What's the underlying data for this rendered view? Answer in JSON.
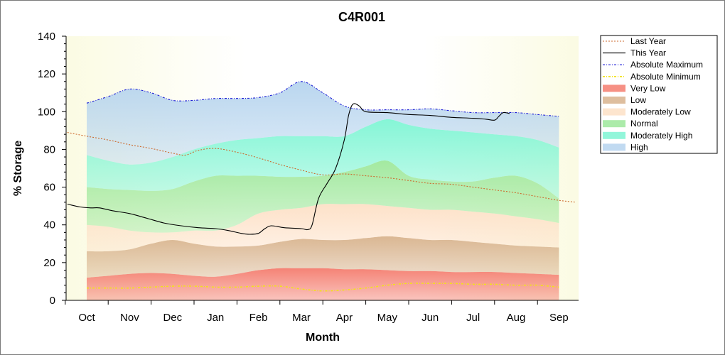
{
  "chart_data": {
    "type": "area",
    "title": "C4R001",
    "xlabel": "Month",
    "ylabel": "% Storage",
    "ylim": [
      0,
      140
    ],
    "y_ticks": [
      0,
      20,
      40,
      60,
      80,
      100,
      120,
      140
    ],
    "x_categories": [
      "Oct",
      "Nov",
      "Dec",
      "Jan",
      "Feb",
      "Mar",
      "Apr",
      "May",
      "Jun",
      "Jul",
      "Aug",
      "Sep"
    ],
    "legend_position": "right",
    "bands_x": [
      0,
      0.5,
      1,
      1.5,
      2,
      2.5,
      3,
      3.5,
      4,
      4.5,
      5,
      5.5,
      6,
      6.5,
      7,
      7.5,
      8,
      8.5,
      9,
      9.5,
      10,
      10.5,
      11
    ],
    "bands": [
      {
        "name": "Very Low",
        "color": "#f47c6e",
        "upper": [
          12,
          13,
          14,
          14.5,
          14,
          13,
          12.5,
          14,
          16,
          17,
          17,
          17,
          16.5,
          16.5,
          16,
          15.5,
          15.5,
          15,
          15,
          15,
          14.5,
          14,
          13.5
        ]
      },
      {
        "name": "Low",
        "color": "#d8b38d",
        "upper": [
          26,
          26,
          27,
          30,
          32,
          30,
          28.5,
          28.5,
          29,
          31,
          32.5,
          32,
          32,
          33,
          34,
          33,
          32,
          32,
          31,
          30,
          29,
          28.5,
          28
        ]
      },
      {
        "name": "Moderately Low",
        "color": "#fde0c6",
        "upper": [
          40,
          39,
          37,
          36,
          36,
          37,
          37,
          40,
          46,
          48,
          49,
          51,
          51,
          51,
          50,
          49,
          48,
          48,
          47,
          46,
          44.5,
          43,
          41
        ]
      },
      {
        "name": "Normal",
        "color": "#9ee89b",
        "upper": [
          60,
          59,
          58.5,
          58,
          59,
          63,
          66,
          66,
          66,
          65.5,
          65.5,
          66,
          68,
          71,
          74,
          66,
          64,
          63,
          63,
          65,
          66,
          62,
          54
        ]
      },
      {
        "name": "Moderately High",
        "color": "#7ff5d4",
        "upper": [
          77,
          74,
          72,
          73,
          76,
          80,
          83,
          85,
          86,
          87,
          87,
          87,
          87,
          92,
          96,
          93,
          91,
          90,
          89,
          88,
          87,
          85,
          81
        ]
      },
      {
        "name": "High",
        "color": "#b6d4ee",
        "upper": [
          104.5,
          108,
          112,
          110,
          106,
          106,
          107,
          107,
          107.5,
          110,
          116,
          110,
          103,
          101,
          101,
          101,
          101.5,
          100.5,
          99.5,
          99.5,
          99.5,
          98.5,
          97.5
        ]
      }
    ],
    "series": [
      {
        "name": "Last Year",
        "color": "#cc6a2e",
        "style": "dotted",
        "x": [
          -0.45,
          0,
          0.5,
          1,
          1.5,
          2,
          2.3,
          2.6,
          3,
          3.5,
          4,
          4.5,
          5,
          5.5,
          6,
          6.5,
          7,
          7.5,
          8,
          8.5,
          9,
          9.5,
          10,
          10.5,
          11,
          11.4
        ],
        "y": [
          89,
          87,
          85,
          82.5,
          80.5,
          78,
          77,
          79.5,
          80.5,
          78.5,
          75.5,
          72,
          69,
          66.5,
          67,
          66,
          65,
          63.5,
          62,
          61.5,
          60,
          58.5,
          57,
          55,
          53,
          52
        ]
      },
      {
        "name": "This Year",
        "color": "#000000",
        "style": "solid",
        "x": [
          -0.45,
          -0.15,
          0.1,
          0.3,
          0.6,
          1,
          1.4,
          1.8,
          2.2,
          2.6,
          3,
          3.3,
          3.6,
          3.8,
          4,
          4.15,
          4.3,
          4.6,
          5,
          5.15,
          5.25,
          5.4,
          5.6,
          5.8,
          6,
          6.1,
          6.2,
          6.35,
          6.5,
          7,
          7.5,
          8,
          8.5,
          9,
          9.3,
          9.5,
          9.6,
          9.7,
          9.85
        ],
        "y": [
          51,
          49.5,
          49,
          49,
          47.5,
          46,
          43.5,
          41,
          39.5,
          38.5,
          38,
          37,
          35.5,
          35,
          35.5,
          38,
          39.5,
          38.5,
          38,
          37.5,
          40,
          54,
          62,
          70,
          85,
          98,
          104,
          103,
          100,
          99.5,
          98.5,
          98,
          97,
          96.5,
          96,
          95.5,
          97.5,
          99.5,
          99
        ]
      },
      {
        "name": "Absolute Maximum",
        "color": "#1c1cd6",
        "style": "dashdot",
        "x": [
          0,
          0.5,
          1,
          1.5,
          2,
          2.5,
          3,
          3.5,
          4,
          4.5,
          5,
          5.5,
          6,
          6.5,
          7,
          7.5,
          8,
          8.5,
          9,
          9.5,
          10,
          10.5,
          11
        ],
        "y": [
          104.5,
          108,
          112,
          110,
          106,
          106,
          107,
          107,
          107.5,
          110,
          116,
          110,
          103,
          101,
          101,
          101,
          101.5,
          100.5,
          99.5,
          99.5,
          99.5,
          98.5,
          97.5
        ]
      },
      {
        "name": "Absolute Minimum",
        "color": "#f2e21a",
        "style": "dashdot",
        "x": [
          0,
          0.5,
          1,
          1.5,
          2,
          2.5,
          3,
          3.5,
          4,
          4.5,
          5,
          5.5,
          6,
          6.5,
          7,
          7.5,
          8,
          8.5,
          9,
          9.5,
          10,
          10.5,
          11
        ],
        "y": [
          6.5,
          6.5,
          6.5,
          7,
          7.5,
          7.5,
          7,
          7,
          7.5,
          7.5,
          6,
          5,
          5.5,
          6.5,
          8,
          9,
          9,
          9,
          8.5,
          8.5,
          8,
          8,
          7
        ]
      }
    ],
    "legend": [
      "Last Year",
      "This Year",
      "Absolute Maximum",
      "Absolute Minimum",
      "Very Low",
      "Low",
      "Moderately Low",
      "Normal",
      "Moderately High",
      "High"
    ]
  }
}
